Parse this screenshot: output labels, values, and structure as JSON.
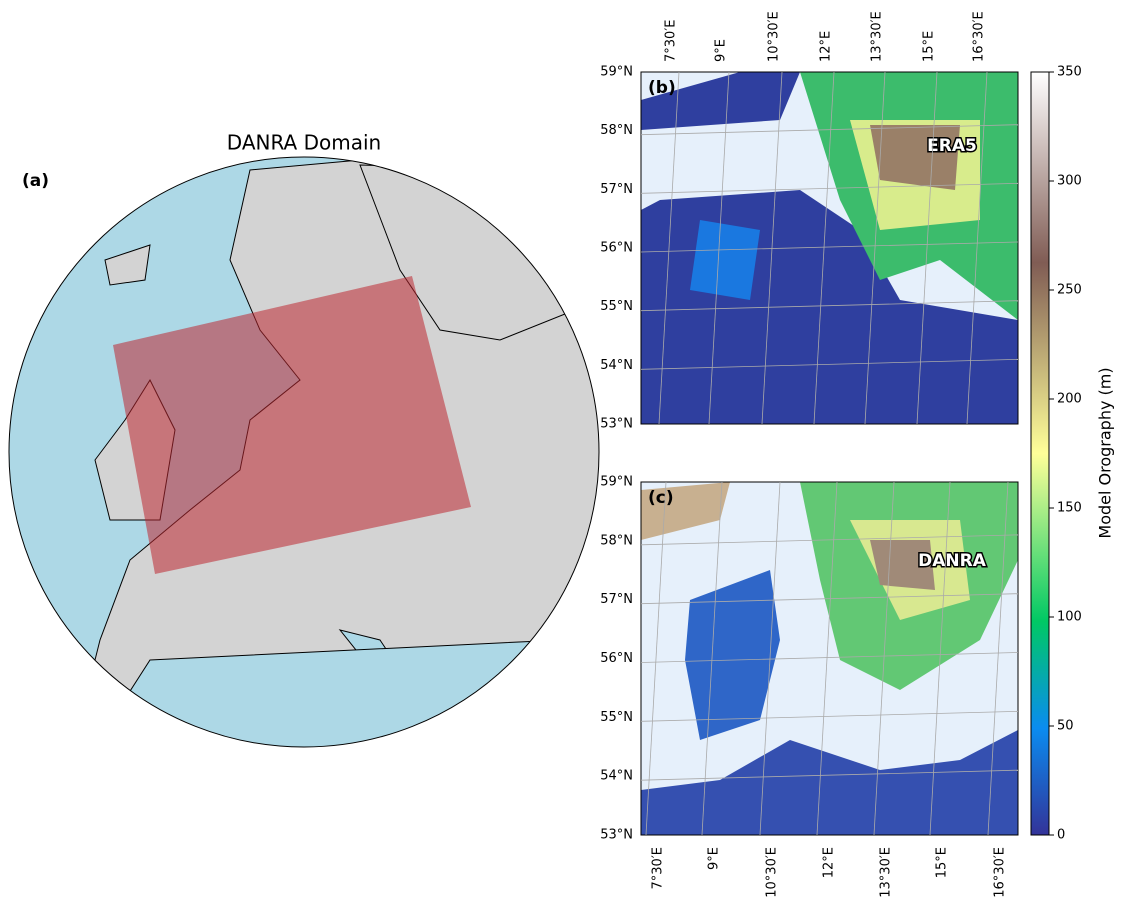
{
  "panel_a": {
    "label": "(a)",
    "title": "DANRA Domain"
  },
  "panel_b": {
    "label": "(b)",
    "dataset": "ERA5",
    "lat_labels": [
      "53°N",
      "54°N",
      "55°N",
      "56°N",
      "57°N",
      "58°N",
      "59°N"
    ],
    "lon_labels": [
      "7°30′E",
      "9°E",
      "10°30′E",
      "12°E",
      "13°30′E",
      "15°E",
      "16°30′E"
    ]
  },
  "panel_c": {
    "label": "(c)",
    "dataset": "DANRA",
    "lat_labels": [
      "53°N",
      "54°N",
      "55°N",
      "56°N",
      "57°N",
      "58°N",
      "59°N"
    ],
    "lon_labels": [
      "7°30′E",
      "9°E",
      "10°30′E",
      "12°E",
      "13°30′E",
      "15°E",
      "16°30′E"
    ]
  },
  "colorbar": {
    "label": "Model Orography (m)",
    "range": [
      0,
      350
    ],
    "ticks": [
      0,
      50,
      100,
      150,
      200,
      250,
      300,
      350
    ]
  }
}
